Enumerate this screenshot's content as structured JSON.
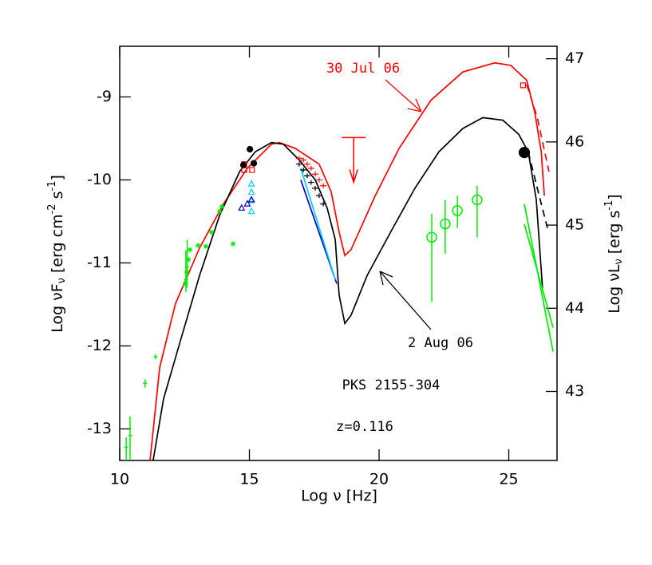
{
  "chart_data": {
    "type": "line",
    "xlabel": [
      "Log ν [Hz]"
    ],
    "ylabel": [
      "Log νF",
      "ν",
      " [erg cm",
      "-2",
      " s",
      "-1",
      "]"
    ],
    "y2label": [
      "Log νL",
      "ν",
      " [erg s",
      "-1",
      "]"
    ],
    "xlim": [
      10,
      26.86
    ],
    "ylim": [
      -13.38,
      -8.39
    ],
    "y2lim": [
      42.17,
      47.15
    ],
    "xticks": [
      10,
      15,
      20,
      25
    ],
    "yticks": [
      -13,
      -12,
      -11,
      -10,
      -9
    ],
    "y2ticks": [
      43,
      44,
      45,
      46,
      47
    ],
    "annotations": [
      "30 Jul 06",
      "2 Aug 06",
      "PKS 2155-304",
      "z=0.116"
    ],
    "series": [
      {
        "style": "line",
        "color": "#ff0000",
        "x": [
          11.17,
          11.54,
          12.15,
          13.08,
          14.0,
          14.92,
          15.85,
          16.15,
          16.77,
          17.69,
          18.15,
          18.46,
          18.68,
          18.92,
          19.85,
          20.77,
          22.0,
          23.23,
          24.46,
          25.08,
          25.69,
          26.0,
          26.25,
          26.37
        ],
        "values": [
          -13.38,
          -12.26,
          -11.49,
          -10.82,
          -10.29,
          -9.86,
          -9.57,
          -9.55,
          -9.62,
          -9.81,
          -10.14,
          -10.63,
          -10.91,
          -10.84,
          -10.19,
          -9.62,
          -9.04,
          -8.7,
          -8.59,
          -8.62,
          -8.8,
          -9.18,
          -9.66,
          -10.19
        ]
      },
      {
        "style": "dashed",
        "color": "#ff0000",
        "x": [
          25.69,
          26.1,
          26.55
        ],
        "values": [
          -8.85,
          -9.25,
          -9.9
        ]
      },
      {
        "style": "line",
        "color": "#000000",
        "x": [
          11.29,
          11.69,
          12.31,
          13.08,
          13.85,
          14.62,
          15.23,
          15.85,
          16.31,
          16.92,
          17.54,
          18.0,
          18.31,
          18.46,
          18.68,
          18.92,
          19.54,
          20.46,
          21.38,
          22.31,
          23.23,
          24.0,
          24.77,
          25.38,
          25.75,
          26.06,
          26.3
        ],
        "values": [
          -13.38,
          -12.64,
          -11.97,
          -11.15,
          -10.43,
          -9.9,
          -9.66,
          -9.55,
          -9.57,
          -9.76,
          -10.0,
          -10.34,
          -10.72,
          -11.39,
          -11.73,
          -11.63,
          -11.15,
          -10.62,
          -10.1,
          -9.66,
          -9.38,
          -9.25,
          -9.28,
          -9.45,
          -9.66,
          -10.24,
          -11.3
        ]
      },
      {
        "style": "dashed",
        "color": "#000000",
        "x": [
          25.75,
          26.1,
          26.49
        ],
        "values": [
          -9.66,
          -10.1,
          -10.58
        ]
      },
      {
        "style": "line",
        "color": "#0000cc",
        "x": [
          16.98,
          18.37
        ],
        "values": [
          -10.0,
          -11.25
        ]
      },
      {
        "style": "line",
        "color": "#00ccff",
        "x": [
          16.98,
          18.31
        ],
        "values": [
          -9.86,
          -11.2
        ]
      },
      {
        "style": "line",
        "color": "#00ee00",
        "x": [
          25.6,
          26.71
        ],
        "values": [
          -10.29,
          -12.07
        ]
      },
      {
        "style": "line",
        "color": "#00ee00",
        "x": [
          25.6,
          26.71
        ],
        "values": [
          -10.53,
          -11.78
        ]
      },
      {
        "style": "markers",
        "marker": "star",
        "color": "#00ee00",
        "x": [
          12.52,
          12.58,
          12.65,
          12.71,
          13.02,
          13.32,
          13.54,
          13.85,
          13.94,
          14.37
        ],
        "values": [
          -11.25,
          -11.11,
          -10.96,
          -10.84,
          -10.79,
          -10.8,
          -10.63,
          -10.38,
          -10.32,
          -10.77
        ]
      },
      {
        "style": "markers",
        "marker": "bar",
        "color": "#00ee00",
        "x": [
          10.25,
          10.4,
          10.98,
          11.38,
          12.55,
          12.6
        ],
        "values": [
          -13.22,
          -13.08,
          -12.45,
          -12.13,
          -11.2,
          -11.05
        ],
        "lower": [
          -13.38,
          -13.38,
          -12.5,
          -12.16,
          -11.35,
          -11.3
        ],
        "upper": [
          -13.1,
          -12.85,
          -12.4,
          -12.1,
          -10.85,
          -10.72
        ]
      },
      {
        "style": "markers",
        "marker": "ocircle",
        "color": "#00ee00",
        "x": [
          22.03,
          22.55,
          23.02,
          23.78
        ],
        "values": [
          -10.69,
          -10.53,
          -10.37,
          -10.24
        ],
        "lower": [
          -11.47,
          -10.89,
          -10.58,
          -10.69
        ],
        "upper": [
          -10.41,
          -10.24,
          -10.19,
          -10.07
        ]
      },
      {
        "style": "markers",
        "marker": "cross",
        "color": "#ff0000",
        "x": [
          16.92,
          17.08,
          17.23,
          17.38,
          17.54,
          17.69,
          17.85
        ],
        "values": [
          -9.74,
          -9.76,
          -9.81,
          -9.86,
          -9.93,
          -10.0,
          -10.07
        ]
      },
      {
        "style": "markers",
        "marker": "cross",
        "color": "#000000",
        "x": [
          16.92,
          17.08,
          17.23,
          17.38,
          17.54,
          17.69,
          17.85
        ],
        "values": [
          -9.81,
          -9.88,
          -9.95,
          -10.03,
          -10.1,
          -10.19,
          -10.29
        ]
      },
      {
        "style": "markers",
        "marker": "triangle",
        "color": "#00ccff",
        "x": [
          15.08,
          15.08,
          15.08,
          15.08
        ],
        "values": [
          -10.05,
          -10.15,
          -10.25,
          -10.38
        ]
      },
      {
        "style": "markers",
        "marker": "triangle",
        "color": "#0000cc",
        "x": [
          14.7,
          14.92,
          15.08
        ],
        "values": [
          -10.34,
          -10.29,
          -10.24
        ]
      },
      {
        "style": "markers",
        "marker": "square",
        "color": "#ff0000",
        "x": [
          14.8,
          15.1,
          14.8,
          25.55
        ],
        "values": [
          -9.88,
          -9.88,
          -9.81,
          -8.86
        ]
      },
      {
        "style": "markers",
        "marker": "circle",
        "color": "#000000",
        "x": [
          14.77,
          15.02,
          15.17
        ],
        "values": [
          -9.82,
          -9.63,
          -9.8
        ]
      },
      {
        "style": "markers",
        "marker": "bigcircle",
        "color": "#000000",
        "x": [
          25.6
        ],
        "values": [
          -9.67
        ]
      },
      {
        "style": "markers",
        "marker": "upper-limit",
        "color": "#ff0000",
        "x": [
          19.02
        ],
        "values": [
          -9.49
        ]
      }
    ]
  }
}
